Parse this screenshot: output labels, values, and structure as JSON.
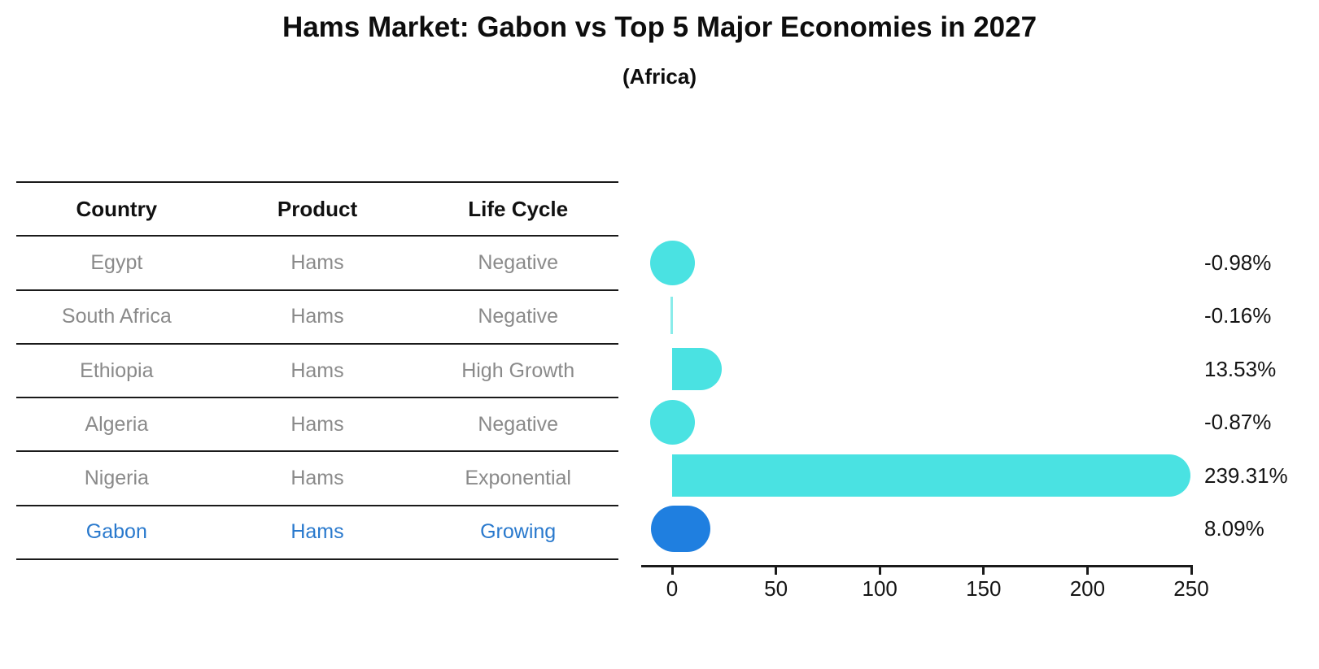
{
  "title": "Hams Market: Gabon vs Top 5 Major Economies in 2027",
  "subtitle": "(Africa)",
  "table": {
    "headers": [
      "Country",
      "Product",
      "Life Cycle"
    ],
    "rows": [
      {
        "country": "Egypt",
        "product": "Hams",
        "life_cycle": "Negative",
        "value_label": "-0.98%",
        "highlight": false
      },
      {
        "country": "South Africa",
        "product": "Hams",
        "life_cycle": "Negative",
        "value_label": "-0.16%",
        "highlight": false
      },
      {
        "country": "Ethiopia",
        "product": "Hams",
        "life_cycle": "High Growth",
        "value_label": "13.53%",
        "highlight": false
      },
      {
        "country": "Algeria",
        "product": "Hams",
        "life_cycle": "Negative",
        "value_label": "-0.87%",
        "highlight": false
      },
      {
        "country": "Nigeria",
        "product": "Hams",
        "life_cycle": "Exponential",
        "value_label": "239.31%",
        "highlight": false
      },
      {
        "country": "Gabon",
        "product": "Hams",
        "life_cycle": "Growing",
        "value_label": "8.09%",
        "highlight": true
      }
    ]
  },
  "chart_data": {
    "type": "bar",
    "orientation": "horizontal",
    "title": "Hams Market: Gabon vs Top 5 Major Economies in 2027",
    "subtitle": "(Africa)",
    "categories": [
      "Egypt",
      "South Africa",
      "Ethiopia",
      "Algeria",
      "Nigeria",
      "Gabon"
    ],
    "values": [
      -0.98,
      -0.16,
      13.53,
      -0.87,
      239.31,
      8.09
    ],
    "value_labels": [
      "-0.98%",
      "-0.16%",
      "13.53%",
      "-0.87%",
      "239.31%",
      "8.09%"
    ],
    "xlabel": "",
    "ylabel": "",
    "xlim": [
      -15,
      260
    ],
    "x_ticks": [
      0,
      50,
      100,
      150,
      200,
      250
    ],
    "grid": false,
    "legend": false,
    "colors": {
      "bar": "#4ae2e2",
      "highlight_bar": "#1f7fe0",
      "highlight_text": "#2979cd",
      "row_text": "#8a8a8a",
      "header_text": "#111111",
      "axis": "#1a1a1a"
    }
  }
}
